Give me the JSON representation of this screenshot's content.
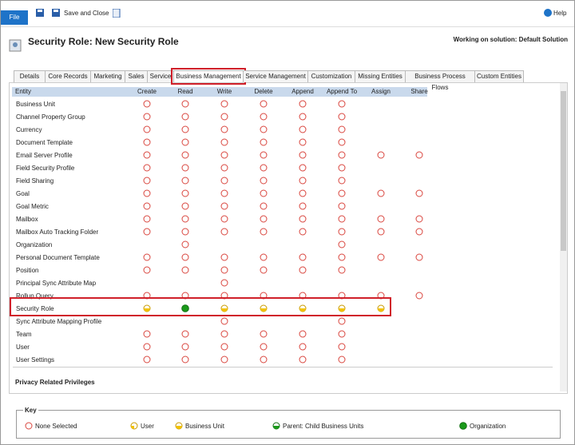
{
  "toolbar": {
    "file": "File",
    "save_close": "Save and Close",
    "help": "Help"
  },
  "header": {
    "title": "Security Role: New Security Role",
    "solution": "Working on solution: Default Solution"
  },
  "tabs": {
    "items": [
      "Details",
      "Core Records",
      "Marketing",
      "Sales",
      "Service",
      "Business Management",
      "Service Management",
      "Customization",
      "Missing Entities",
      "Business Process Flows",
      "Custom Entities"
    ],
    "active": 5
  },
  "table": {
    "columns": [
      "Entity",
      "Create",
      "Read",
      "Write",
      "Delete",
      "Append",
      "Append To",
      "Assign",
      "Share"
    ],
    "rows": [
      {
        "entity": "Business Unit",
        "levels": [
          "none",
          "none",
          "none",
          "none",
          "none",
          "none",
          null,
          null
        ]
      },
      {
        "entity": "Channel Property Group",
        "levels": [
          "none",
          "none",
          "none",
          "none",
          "none",
          "none",
          null,
          null
        ]
      },
      {
        "entity": "Currency",
        "levels": [
          "none",
          "none",
          "none",
          "none",
          "none",
          "none",
          null,
          null
        ]
      },
      {
        "entity": "Document Template",
        "levels": [
          "none",
          "none",
          "none",
          "none",
          "none",
          "none",
          null,
          null
        ]
      },
      {
        "entity": "Email Server Profile",
        "levels": [
          "none",
          "none",
          "none",
          "none",
          "none",
          "none",
          "none",
          "none"
        ]
      },
      {
        "entity": "Field Security Profile",
        "levels": [
          "none",
          "none",
          "none",
          "none",
          "none",
          "none",
          null,
          null
        ]
      },
      {
        "entity": "Field Sharing",
        "levels": [
          "none",
          "none",
          "none",
          "none",
          "none",
          "none",
          null,
          null
        ]
      },
      {
        "entity": "Goal",
        "levels": [
          "none",
          "none",
          "none",
          "none",
          "none",
          "none",
          "none",
          "none"
        ]
      },
      {
        "entity": "Goal Metric",
        "levels": [
          "none",
          "none",
          "none",
          "none",
          "none",
          "none",
          null,
          null
        ]
      },
      {
        "entity": "Mailbox",
        "levels": [
          "none",
          "none",
          "none",
          "none",
          "none",
          "none",
          "none",
          "none"
        ]
      },
      {
        "entity": "Mailbox Auto Tracking Folder",
        "levels": [
          "none",
          "none",
          "none",
          "none",
          "none",
          "none",
          "none",
          "none"
        ]
      },
      {
        "entity": "Organization",
        "levels": [
          null,
          "none",
          null,
          null,
          null,
          "none",
          null,
          null
        ]
      },
      {
        "entity": "Personal Document Template",
        "levels": [
          "none",
          "none",
          "none",
          "none",
          "none",
          "none",
          "none",
          "none"
        ]
      },
      {
        "entity": "Position",
        "levels": [
          "none",
          "none",
          "none",
          "none",
          "none",
          "none",
          null,
          null
        ]
      },
      {
        "entity": "Principal Sync Attribute Map",
        "levels": [
          null,
          null,
          "none",
          null,
          null,
          null,
          null,
          null
        ]
      },
      {
        "entity": "Rollup Query",
        "levels": [
          "none",
          "none",
          "none",
          "none",
          "none",
          "none",
          "none",
          "none"
        ]
      },
      {
        "entity": "Security Role",
        "levels": [
          "bu",
          "org",
          "bu",
          "bu",
          "bu",
          "bu",
          "bu",
          null
        ],
        "highlight": true
      },
      {
        "entity": "Sync Attribute Mapping Profile",
        "levels": [
          null,
          null,
          "none",
          null,
          null,
          "none",
          null,
          null
        ]
      },
      {
        "entity": "Team",
        "levels": [
          "none",
          "none",
          "none",
          "none",
          "none",
          "none",
          null,
          null
        ]
      },
      {
        "entity": "User",
        "levels": [
          "none",
          "none",
          "none",
          "none",
          "none",
          "none",
          null,
          null
        ]
      },
      {
        "entity": "User Settings",
        "levels": [
          "none",
          "none",
          "none",
          "none",
          "none",
          "none",
          null,
          null
        ]
      }
    ]
  },
  "section": "Privacy Related Privileges",
  "key": {
    "title": "Key",
    "items": [
      {
        "label": "None Selected",
        "level": "none"
      },
      {
        "label": "User",
        "level": "user"
      },
      {
        "label": "Business Unit",
        "level": "bu"
      },
      {
        "label": "Parent: Child Business Units",
        "level": "parent"
      },
      {
        "label": "Organization",
        "level": "org"
      }
    ]
  }
}
